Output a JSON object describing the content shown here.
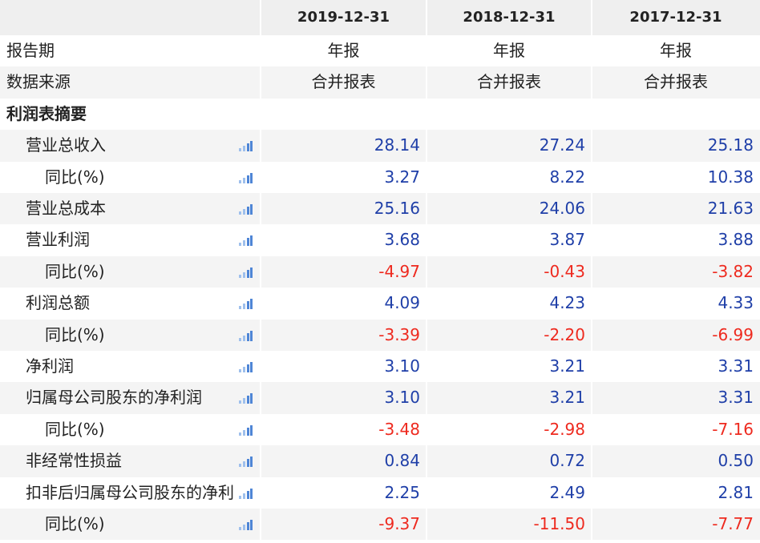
{
  "header": {
    "columns": [
      "2019-12-31",
      "2018-12-31",
      "2017-12-31"
    ]
  },
  "meta_rows": [
    {
      "label": "报告期",
      "values": [
        "年报",
        "年报",
        "年报"
      ]
    },
    {
      "label": "数据来源",
      "values": [
        "合并报表",
        "合并报表",
        "合并报表"
      ]
    }
  ],
  "section": {
    "title": "利润表摘要",
    "rows": [
      {
        "label": "营业总收入",
        "child": false,
        "values": [
          "28.14",
          "27.24",
          "25.18"
        ]
      },
      {
        "label": "同比(%)",
        "child": true,
        "values": [
          "3.27",
          "8.22",
          "10.38"
        ]
      },
      {
        "label": "营业总成本",
        "child": false,
        "values": [
          "25.16",
          "24.06",
          "21.63"
        ]
      },
      {
        "label": "营业利润",
        "child": false,
        "values": [
          "3.68",
          "3.87",
          "3.88"
        ]
      },
      {
        "label": "同比(%)",
        "child": true,
        "values": [
          "-4.97",
          "-0.43",
          "-3.82"
        ]
      },
      {
        "label": "利润总额",
        "child": false,
        "values": [
          "4.09",
          "4.23",
          "4.33"
        ]
      },
      {
        "label": "同比(%)",
        "child": true,
        "values": [
          "-3.39",
          "-2.20",
          "-6.99"
        ]
      },
      {
        "label": "净利润",
        "child": false,
        "values": [
          "3.10",
          "3.21",
          "3.31"
        ]
      },
      {
        "label": "归属母公司股东的净利润",
        "child": false,
        "values": [
          "3.10",
          "3.21",
          "3.31"
        ]
      },
      {
        "label": "同比(%)",
        "child": true,
        "values": [
          "-3.48",
          "-2.98",
          "-7.16"
        ]
      },
      {
        "label": "非经常性损益",
        "child": false,
        "values": [
          "0.84",
          "0.72",
          "0.50"
        ]
      },
      {
        "label": "扣非后归属母公司股东的净利",
        "child": false,
        "values": [
          "2.25",
          "2.49",
          "2.81"
        ]
      },
      {
        "label": "同比(%)",
        "child": true,
        "values": [
          "-9.37",
          "-11.50",
          "-7.77"
        ]
      }
    ]
  },
  "colors": {
    "positive": "#1f3fa8",
    "negative": "#ee2a1f"
  }
}
